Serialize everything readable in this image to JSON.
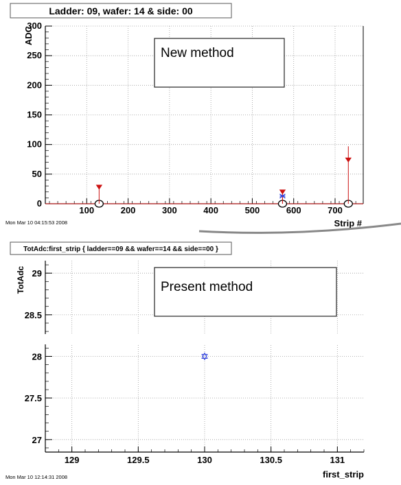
{
  "chart_data": [
    {
      "type": "scatter",
      "title": "Ladder: 09, wafer: 14 & side: 00",
      "xlabel": "Strip #",
      "ylabel": "ADC",
      "xlim": [
        0,
        768
      ],
      "ylim": [
        0,
        300
      ],
      "x_ticks": [
        "100",
        "200",
        "300",
        "400",
        "500",
        "600",
        "700"
      ],
      "y_ticks": [
        "0",
        "50",
        "100",
        "150",
        "200",
        "250",
        "300"
      ],
      "grid": true,
      "annotation": "New method",
      "timestamp": "Mon Mar 10 04:15:53 2008",
      "baseline": 0,
      "series": [
        {
          "points": [
            {
              "x": 130,
              "y": 28,
              "ylow": 0,
              "yhigh": 30
            },
            {
              "x": 573,
              "y": 20,
              "ylow": 0,
              "yhigh": 22
            },
            {
              "x": 573,
              "y": 13,
              "ylow": 0,
              "yhigh": 16
            },
            {
              "x": 732,
              "y": 74,
              "ylow": 0,
              "yhigh": 97
            }
          ]
        }
      ],
      "circled_x": [
        130,
        573,
        732
      ]
    },
    {
      "type": "scatter",
      "title": "TotAdc:first_strip { ladder==09 && wafer==14 && side==00 }",
      "xlabel": "first_strip",
      "ylabel": "TotAdc",
      "xlim": [
        128.8,
        131.2
      ],
      "ylim": [
        26.85,
        29.15
      ],
      "x_ticks": [
        "129",
        "129.5",
        "130",
        "130.5",
        "131"
      ],
      "y_ticks": [
        "27",
        "27.5",
        "28",
        "28.5",
        "29"
      ],
      "grid": true,
      "annotation": "Present method",
      "timestamp": "Mon Mar 10 12:14:31 2008",
      "series": [
        {
          "points": [
            {
              "x": 130,
              "y": 28
            }
          ]
        }
      ]
    }
  ],
  "colors": {
    "red_marker": "#cc1111",
    "blue_marker": "#3344dd",
    "grid": "#9a9a9a"
  }
}
